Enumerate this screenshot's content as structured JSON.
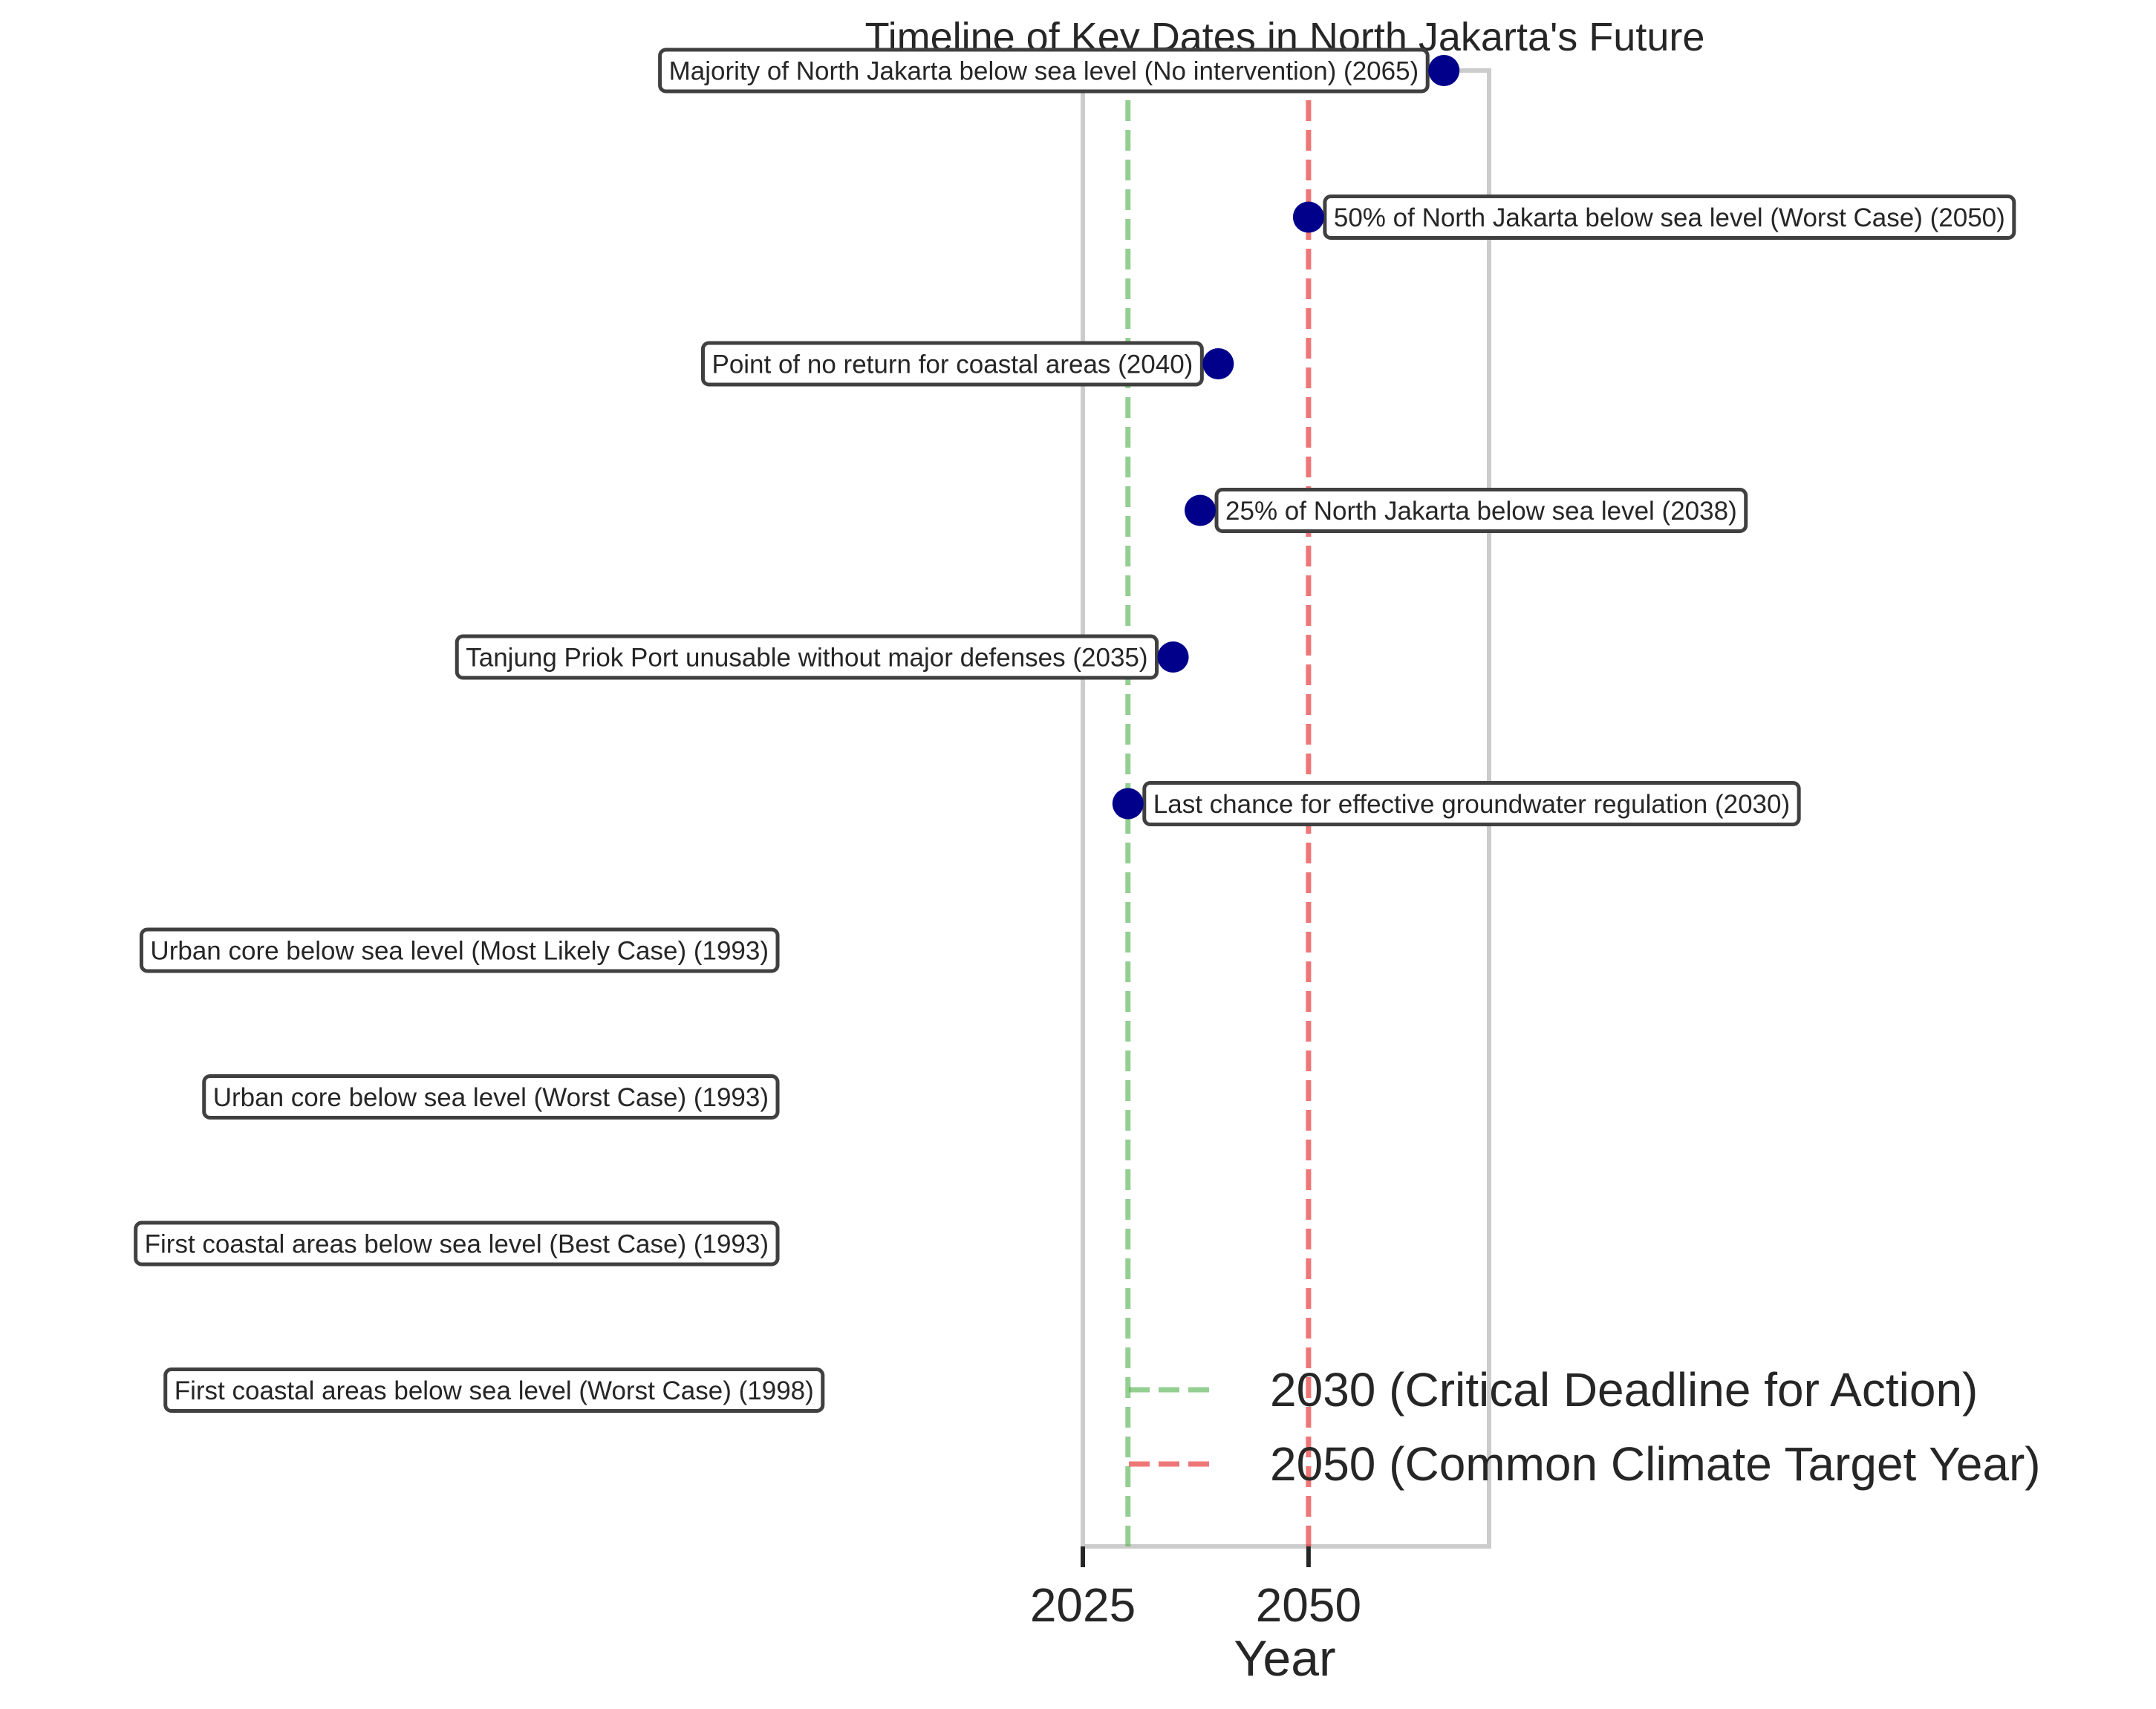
{
  "chart_data": {
    "type": "scatter",
    "title": "Timeline of Key Dates in North Jakarta's Future",
    "xlabel": "Year",
    "ylabel": "",
    "xlim": [
      2025,
      2070
    ],
    "x_ticks": [
      2025,
      2050
    ],
    "grid": false,
    "legend_position": "lower-right",
    "point_color": "#00008b",
    "events": [
      {
        "label": "First coastal areas below sea level (Worst Case) (1998)",
        "year": 1998,
        "side": "left",
        "marker": false
      },
      {
        "label": "First coastal areas below sea level (Best Case) (1993)",
        "year": 1993,
        "side": "left",
        "marker": false
      },
      {
        "label": "Urban core below sea level (Worst Case) (1993)",
        "year": 1993,
        "side": "left",
        "marker": false
      },
      {
        "label": "Urban core below sea level (Most Likely Case) (1993)",
        "year": 1993,
        "side": "left",
        "marker": false
      },
      {
        "label": "Last chance for effective groundwater regulation (2030)",
        "year": 2030,
        "side": "right",
        "marker": true
      },
      {
        "label": "Tanjung Priok Port unusable without major defenses (2035)",
        "year": 2035,
        "side": "left",
        "marker": true
      },
      {
        "label": "25% of North Jakarta below sea level (2038)",
        "year": 2038,
        "side": "right",
        "marker": true
      },
      {
        "label": "Point of no return for coastal areas (2040)",
        "year": 2040,
        "side": "left",
        "marker": true
      },
      {
        "label": "50% of North Jakarta below sea level (Worst Case) (2050)",
        "year": 2050,
        "side": "right",
        "marker": true
      },
      {
        "label": "Majority of North Jakarta below sea level (No intervention) (2065)",
        "year": 2065,
        "side": "left",
        "marker": true
      }
    ],
    "reference_lines": [
      {
        "year": 2030,
        "label": "2030 (Critical Deadline for Action)",
        "color": "#4daf4a"
      },
      {
        "year": 2050,
        "label": "2050 (Common Climate Target Year)",
        "color": "#e41a1c"
      }
    ]
  }
}
